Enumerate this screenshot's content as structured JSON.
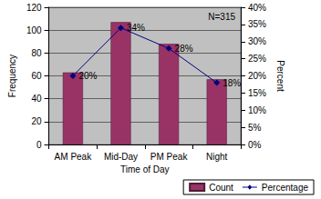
{
  "chart_data": {
    "type": "bar",
    "x_label": "Time of Day",
    "y_label": "Frequency",
    "y2_label": "Percent",
    "annotations": [
      "N=315"
    ],
    "categories": [
      "AM Peak",
      "Mid-Day",
      "PM Peak",
      "Night"
    ],
    "series": [
      {
        "name": "Count",
        "type": "bar",
        "color": "#993366",
        "values": [
          63,
          107,
          88,
          57
        ]
      },
      {
        "name": "Percentage",
        "type": "line",
        "axis": "y2",
        "color": "#000080",
        "marker": "diamond",
        "line_style": "solid",
        "values": [
          20,
          34,
          28,
          18
        ],
        "value_labels": [
          "20%",
          "34%",
          "28%",
          "18%"
        ]
      }
    ],
    "ylim": [
      0,
      120
    ],
    "yticks": [
      0,
      20,
      40,
      60,
      80,
      100,
      120
    ],
    "y2lim": [
      0,
      40
    ],
    "y2ticks": [
      {
        "value": 0,
        "label": "0%"
      },
      {
        "value": 5,
        "label": "5%"
      },
      {
        "value": 10,
        "label": "10%"
      },
      {
        "value": 15,
        "label": "15%"
      },
      {
        "value": 20,
        "label": "20%"
      },
      {
        "value": 25,
        "label": "25%"
      },
      {
        "value": 30,
        "label": "30%"
      },
      {
        "value": 35,
        "label": "35%"
      },
      {
        "value": 40,
        "label": "40%"
      }
    ],
    "grid": true,
    "legend": "bottom-right"
  }
}
